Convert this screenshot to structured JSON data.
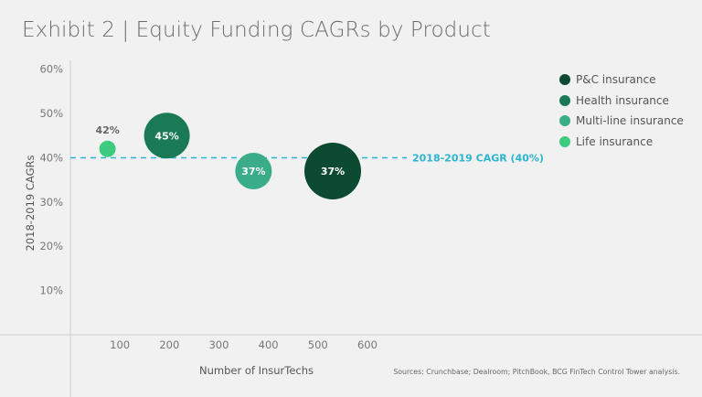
{
  "title": "Exhibit 2 | Equity Funding CAGRs by Product",
  "source": "Sources: Crunchbase; Dealroom; PitchBook, BCG FinTech Control Tower analysis.",
  "chart_data": {
    "type": "scatter",
    "title": "Exhibit 2 | Equity Funding CAGRs by Product",
    "xlabel": "Number of InsurTechs",
    "ylabel": "2018-2019 CAGRs",
    "x_ticks": [
      "100",
      "200",
      "300",
      "400",
      "500",
      "600"
    ],
    "y_ticks": [
      "10%",
      "20%",
      "30%",
      "40%",
      "50%",
      "60%"
    ],
    "xlim": [
      0,
      650
    ],
    "ylim": [
      0,
      62
    ],
    "grid": false,
    "legend_position": "top-right",
    "reference_line": {
      "y": 40,
      "label": "2018-2019 CAGR (40%)",
      "color": "#2bb5cf",
      "style": "dashed"
    },
    "series": [
      {
        "name": "P&C insurance",
        "color": "#0d4a32",
        "x": 530,
        "y": 37,
        "label": "37%",
        "size": "largest"
      },
      {
        "name": "Health insurance",
        "color": "#1a7a55",
        "x": 195,
        "y": 45,
        "label": "45%",
        "size": "large"
      },
      {
        "name": "Multi-line insurance",
        "color": "#3aac88",
        "x": 370,
        "y": 37,
        "label": "37%",
        "size": "medium"
      },
      {
        "name": "Life insurance",
        "color": "#3dcb80",
        "x": 75,
        "y": 42,
        "label": "42%",
        "size": "small"
      }
    ]
  }
}
